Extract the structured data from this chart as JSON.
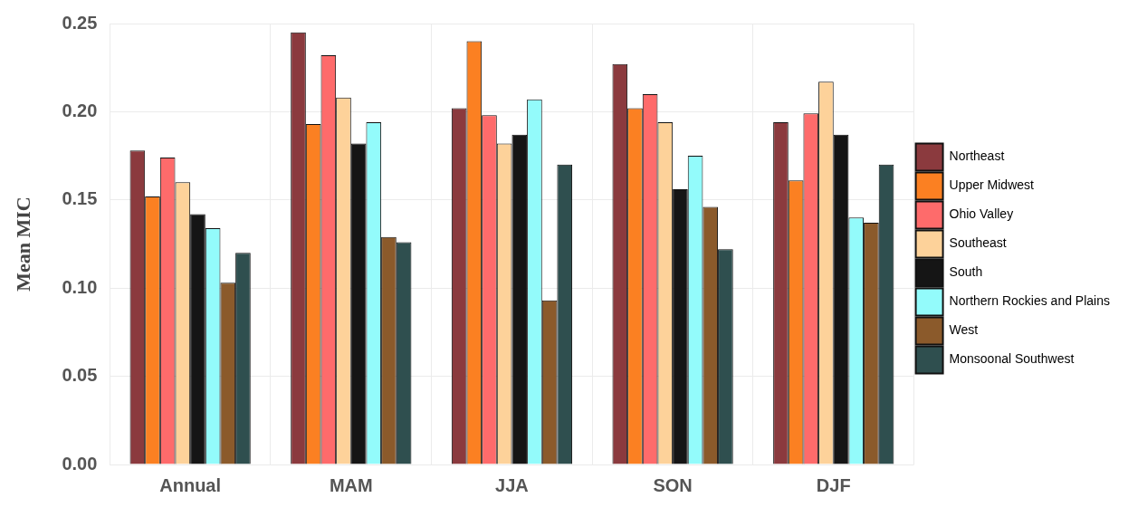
{
  "chart_data": {
    "type": "bar",
    "ylabel": "Mean MIC",
    "categories": [
      "Annual",
      "MAM",
      "JJA",
      "SON",
      "DJF"
    ],
    "series": [
      {
        "name": "Northeast",
        "color": "#8b3a3e",
        "values": [
          0.178,
          0.245,
          0.202,
          0.227,
          0.194
        ]
      },
      {
        "name": "Upper Midwest",
        "color": "#fb8022",
        "values": [
          0.152,
          0.193,
          0.24,
          0.202,
          0.161
        ]
      },
      {
        "name": "Ohio Valley",
        "color": "#fe6b6b",
        "values": [
          0.174,
          0.232,
          0.198,
          0.21,
          0.199
        ]
      },
      {
        "name": "Southeast",
        "color": "#fdd29a",
        "values": [
          0.16,
          0.208,
          0.182,
          0.194,
          0.217
        ]
      },
      {
        "name": "South",
        "color": "#151515",
        "values": [
          0.142,
          0.182,
          0.187,
          0.156,
          0.187
        ]
      },
      {
        "name": "Northern Rockies and Plains",
        "color": "#93fbfb",
        "values": [
          0.134,
          0.194,
          0.207,
          0.175,
          0.14
        ]
      },
      {
        "name": "West",
        "color": "#8b5a2b",
        "values": [
          0.103,
          0.129,
          0.093,
          0.146,
          0.137
        ]
      },
      {
        "name": "Monsoonal Southwest",
        "color": "#2f4f4f",
        "values": [
          0.12,
          0.126,
          0.17,
          0.122,
          0.17
        ]
      }
    ],
    "ylim": [
      0,
      0.25
    ],
    "yticks": [
      {
        "value": 0,
        "label": "0.00"
      },
      {
        "value": 0.05,
        "label": "0.05"
      },
      {
        "value": 0.1,
        "label": "0.10"
      },
      {
        "value": 0.15,
        "label": "0.15"
      },
      {
        "value": 0.2,
        "label": "0.20"
      },
      {
        "value": 0.25,
        "label": "0.25"
      }
    ],
    "grid": true,
    "legend": "right"
  }
}
